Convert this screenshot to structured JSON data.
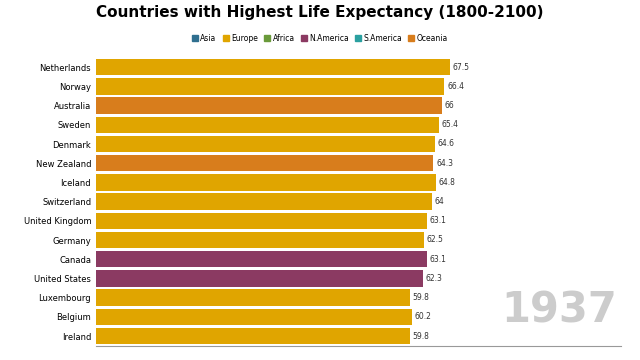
{
  "chart_data": {
    "type": "bar",
    "orientation": "horizontal",
    "title": "Countries with Highest Life Expectancy (1800-2100)",
    "categories": [
      "Netherlands",
      "Norway",
      "Australia",
      "Sweden",
      "Denmark",
      "New Zealand",
      "Iceland",
      "Switzerland",
      "United Kingdom",
      "Germany",
      "Canada",
      "United States",
      "Luxembourg",
      "Belgium",
      "Ireland"
    ],
    "values": [
      67.5,
      66.4,
      66,
      65.4,
      64.6,
      64.3,
      64.8,
      64,
      63.1,
      62.5,
      63.1,
      62.3,
      59.8,
      60.2,
      59.8
    ],
    "colors": [
      "#e0a500",
      "#e0a500",
      "#d87d1c",
      "#e0a500",
      "#e0a500",
      "#d87d1c",
      "#e0a500",
      "#e0a500",
      "#e0a500",
      "#e0a500",
      "#8b3a62",
      "#8b3a62",
      "#e0a500",
      "#e0a500",
      "#e0a500"
    ],
    "data_labels": true,
    "continents": [
      {
        "name": "Asia",
        "color": "#2f6f8f"
      },
      {
        "name": "Europe",
        "color": "#e0a500"
      },
      {
        "name": "Africa",
        "color": "#6a9a3a"
      },
      {
        "name": "N.America",
        "color": "#8b3a62"
      },
      {
        "name": "S.America",
        "color": "#2aa0a0"
      },
      {
        "name": "Oceania",
        "color": "#d87d1c"
      }
    ],
    "legend": "upper center",
    "annotation": "1937",
    "xlim": [
      0,
      100
    ],
    "tick_labels": "y",
    "grid": false
  }
}
